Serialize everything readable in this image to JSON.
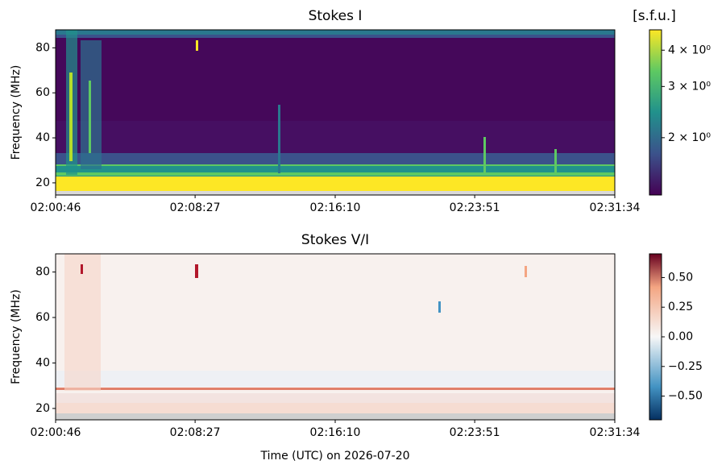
{
  "chart_data": [
    {
      "type": "spectrogram",
      "title": "Stokes I",
      "ylabel": "Frequency (MHz)",
      "xlim": [
        "02:00:46",
        "02:31:34"
      ],
      "xticks": [
        "02:00:46",
        "02:08:27",
        "02:16:10",
        "02:23:51",
        "02:31:34"
      ],
      "ylim": [
        14.6,
        88
      ],
      "yticks": [
        20,
        40,
        60,
        80
      ],
      "colorbar": {
        "label": "[s.f.u.]",
        "cmap": "viridis",
        "scale": "log",
        "lim": [
          1.27,
          4.7
        ],
        "ticks": [
          {
            "value": 2,
            "label": "2 × 10⁰"
          },
          {
            "value": 3,
            "label": "3 × 10⁰"
          },
          {
            "value": 4,
            "label": "4 × 10⁰"
          }
        ]
      }
    },
    {
      "type": "spectrogram",
      "title": "Stokes V/I",
      "ylabel": "Frequency (MHz)",
      "xlabel": "Time (UTC) on 2026-07-20",
      "xlim": [
        "02:00:46",
        "02:31:34"
      ],
      "xticks": [
        "02:00:46",
        "02:08:27",
        "02:16:10",
        "02:23:51",
        "02:31:34"
      ],
      "ylim": [
        15,
        88
      ],
      "yticks": [
        20,
        40,
        60,
        80
      ],
      "colorbar": {
        "cmap": "RdBu_r",
        "scale": "linear",
        "lim": [
          -0.7,
          0.7
        ],
        "ticks": [
          {
            "value": -0.5,
            "label": "−0.50"
          },
          {
            "value": -0.25,
            "label": "−0.25"
          },
          {
            "value": 0,
            "label": "0.00"
          },
          {
            "value": 0.25,
            "label": "0.25"
          },
          {
            "value": 0.5,
            "label": "0.50"
          }
        ]
      }
    }
  ]
}
